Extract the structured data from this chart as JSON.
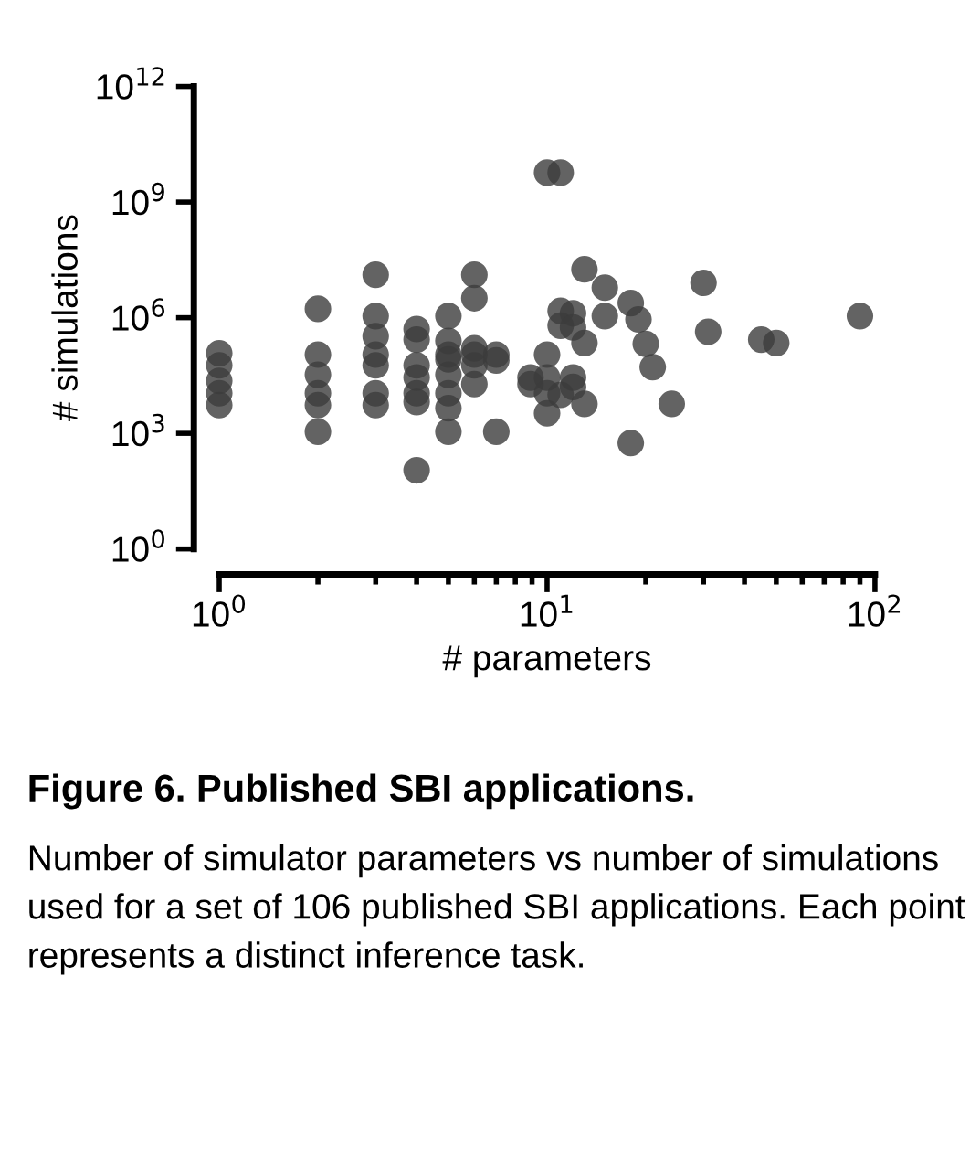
{
  "chart_data": {
    "type": "scatter",
    "title": "Figure 6. Published SBI applications.",
    "xlabel": "# parameters",
    "ylabel": "# simulations",
    "annotations": [
      "Number of simulator parameters vs number of simulations used for a set of 106 published SBI applications. Each point represents a distinct inference task."
    ],
    "log": "xy",
    "xlim": [
      1,
      100
    ],
    "ylim": [
      1,
      1000000000000.0
    ],
    "xticks": [
      {
        "value": 1,
        "label": "10$^{0}$"
      },
      {
        "value": 10,
        "label": "10$^{1}$"
      },
      {
        "value": 100,
        "label": "10$^{2}$"
      }
    ],
    "yticks": [
      {
        "value": 1,
        "label": "10$^{0}$"
      },
      {
        "value": 1000,
        "label": "10$^{3}$"
      },
      {
        "value": 1000000,
        "label": "10$^{6}$"
      },
      {
        "value": 1000000000,
        "label": "10$^{9}$"
      },
      {
        "value": 1000000000000,
        "label": "10$^{12}$"
      }
    ],
    "grid": false,
    "marker": "circle",
    "series": [
      {
        "color": "#3c3c3c",
        "x": [
          1,
          1,
          1,
          1,
          1,
          2,
          2,
          2,
          2,
          2,
          2,
          3,
          3,
          3,
          3,
          3,
          3,
          3,
          4,
          4,
          4,
          4,
          4,
          4,
          4,
          5,
          5,
          5,
          5,
          5,
          5,
          5,
          5,
          6,
          6,
          6,
          6,
          6,
          6,
          7,
          7,
          7,
          8.9,
          8.9,
          10,
          10,
          10,
          10,
          10,
          11,
          13,
          15,
          15,
          18,
          19,
          20,
          21,
          24,
          18,
          30,
          31,
          45,
          50,
          90,
          11,
          12,
          11,
          12,
          13,
          12,
          12,
          11,
          13
        ],
        "values": [
          120000.0,
          58000.0,
          23000.0,
          11000.0,
          5400.0,
          1700000.0,
          110000.0,
          33000.0,
          11000.0,
          5400.0,
          1100.0,
          13000000.0,
          1100000.0,
          330000.0,
          110000.0,
          58000.0,
          11000.0,
          5400.0,
          510000.0,
          270000.0,
          58000.0,
          28000.0,
          11000.0,
          6500.0,
          110,
          1100000.0,
          250000.0,
          110000.0,
          83000.0,
          33000.0,
          11000.0,
          4500.0,
          1100.0,
          13000000.0,
          3200000.0,
          160000.0,
          110000.0,
          58000.0,
          19000.0,
          110000.0,
          78000.0,
          1100.0,
          28000.0,
          19000.0,
          110000.0,
          5800000000.0,
          28000.0,
          11000.0,
          3300.0,
          5800000000.0,
          18000000.0,
          6000000.0,
          1100000.0,
          2400000.0,
          900000.0,
          210000.0,
          52000.0,
          5800.0,
          560,
          8000000.0,
          430000.0,
          270000.0,
          220000.0,
          1100000.0,
          1500000.0,
          1300000.0,
          620000.0,
          560000.0,
          220000.0,
          28000.0,
          16000.0,
          10000.0,
          5800.0
        ]
      }
    ]
  }
}
